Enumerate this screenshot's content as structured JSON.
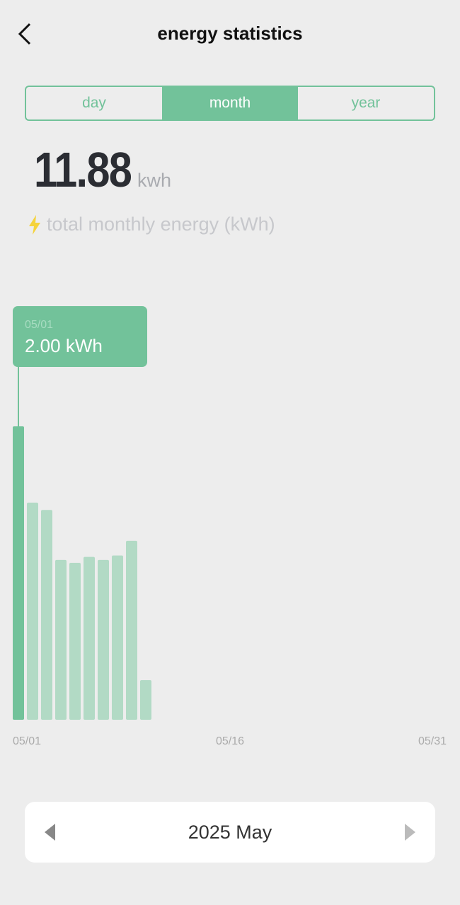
{
  "header": {
    "title": "energy statistics",
    "back_icon": "chevron-left-icon"
  },
  "tabs": [
    {
      "label": "day",
      "active": false
    },
    {
      "label": "month",
      "active": true
    },
    {
      "label": "year",
      "active": false
    }
  ],
  "summary": {
    "value": "11.88",
    "unit": "kwh",
    "caption": "total monthly energy (kWh)",
    "icon": "lightning-icon"
  },
  "colors": {
    "accent": "#72c29a",
    "bar_inactive": "#b2dac5",
    "lightning": "#f5d33b"
  },
  "chart_data": {
    "type": "bar",
    "categories": [
      "05/01",
      "05/02",
      "05/03",
      "05/04",
      "05/05",
      "05/06",
      "05/07",
      "05/08",
      "05/09",
      "05/10"
    ],
    "values": [
      2.0,
      1.48,
      1.43,
      1.09,
      1.07,
      1.11,
      1.09,
      1.12,
      1.22,
      0.27
    ],
    "days_in_month": 31,
    "x_tick_labels": [
      "05/01",
      "05/16",
      "05/31"
    ],
    "ylim": [
      0,
      2.8
    ],
    "grid": false,
    "selected_index": 0,
    "tooltip": {
      "date": "05/01",
      "value": "2.00 kWh"
    }
  },
  "period_nav": {
    "label": "2025 May",
    "prev_icon": "triangle-left-icon",
    "next_icon": "triangle-right-icon"
  }
}
